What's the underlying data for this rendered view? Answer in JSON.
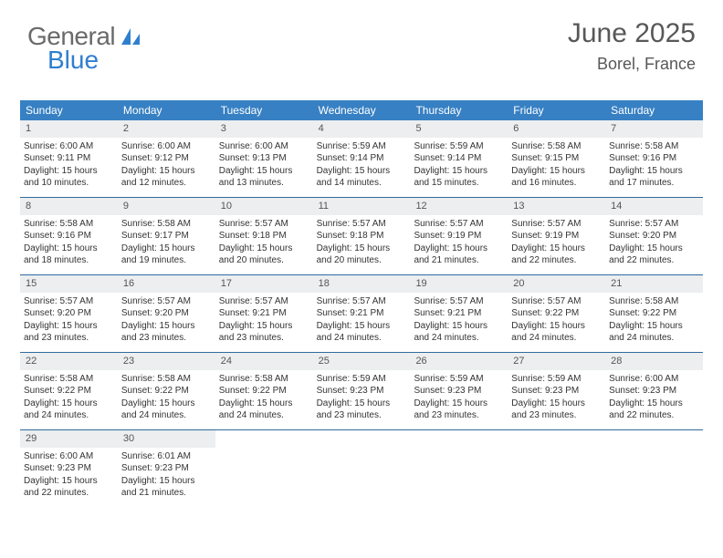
{
  "logo": {
    "part1": "General",
    "part2": "Blue"
  },
  "title": "June 2025",
  "location": "Borel, France",
  "day_header_bg": "#3780c3",
  "day_header_fg": "#ffffff",
  "daynum_bg": "#eceeef",
  "week_border": "#2f6aa0",
  "weekdays": [
    "Sunday",
    "Monday",
    "Tuesday",
    "Wednesday",
    "Thursday",
    "Friday",
    "Saturday"
  ],
  "days": [
    {
      "n": "1",
      "sr": "6:00 AM",
      "ss": "9:11 PM",
      "dl": "15 hours and 10 minutes."
    },
    {
      "n": "2",
      "sr": "6:00 AM",
      "ss": "9:12 PM",
      "dl": "15 hours and 12 minutes."
    },
    {
      "n": "3",
      "sr": "6:00 AM",
      "ss": "9:13 PM",
      "dl": "15 hours and 13 minutes."
    },
    {
      "n": "4",
      "sr": "5:59 AM",
      "ss": "9:14 PM",
      "dl": "15 hours and 14 minutes."
    },
    {
      "n": "5",
      "sr": "5:59 AM",
      "ss": "9:14 PM",
      "dl": "15 hours and 15 minutes."
    },
    {
      "n": "6",
      "sr": "5:58 AM",
      "ss": "9:15 PM",
      "dl": "15 hours and 16 minutes."
    },
    {
      "n": "7",
      "sr": "5:58 AM",
      "ss": "9:16 PM",
      "dl": "15 hours and 17 minutes."
    },
    {
      "n": "8",
      "sr": "5:58 AM",
      "ss": "9:16 PM",
      "dl": "15 hours and 18 minutes."
    },
    {
      "n": "9",
      "sr": "5:58 AM",
      "ss": "9:17 PM",
      "dl": "15 hours and 19 minutes."
    },
    {
      "n": "10",
      "sr": "5:57 AM",
      "ss": "9:18 PM",
      "dl": "15 hours and 20 minutes."
    },
    {
      "n": "11",
      "sr": "5:57 AM",
      "ss": "9:18 PM",
      "dl": "15 hours and 20 minutes."
    },
    {
      "n": "12",
      "sr": "5:57 AM",
      "ss": "9:19 PM",
      "dl": "15 hours and 21 minutes."
    },
    {
      "n": "13",
      "sr": "5:57 AM",
      "ss": "9:19 PM",
      "dl": "15 hours and 22 minutes."
    },
    {
      "n": "14",
      "sr": "5:57 AM",
      "ss": "9:20 PM",
      "dl": "15 hours and 22 minutes."
    },
    {
      "n": "15",
      "sr": "5:57 AM",
      "ss": "9:20 PM",
      "dl": "15 hours and 23 minutes."
    },
    {
      "n": "16",
      "sr": "5:57 AM",
      "ss": "9:20 PM",
      "dl": "15 hours and 23 minutes."
    },
    {
      "n": "17",
      "sr": "5:57 AM",
      "ss": "9:21 PM",
      "dl": "15 hours and 23 minutes."
    },
    {
      "n": "18",
      "sr": "5:57 AM",
      "ss": "9:21 PM",
      "dl": "15 hours and 24 minutes."
    },
    {
      "n": "19",
      "sr": "5:57 AM",
      "ss": "9:21 PM",
      "dl": "15 hours and 24 minutes."
    },
    {
      "n": "20",
      "sr": "5:57 AM",
      "ss": "9:22 PM",
      "dl": "15 hours and 24 minutes."
    },
    {
      "n": "21",
      "sr": "5:58 AM",
      "ss": "9:22 PM",
      "dl": "15 hours and 24 minutes."
    },
    {
      "n": "22",
      "sr": "5:58 AM",
      "ss": "9:22 PM",
      "dl": "15 hours and 24 minutes."
    },
    {
      "n": "23",
      "sr": "5:58 AM",
      "ss": "9:22 PM",
      "dl": "15 hours and 24 minutes."
    },
    {
      "n": "24",
      "sr": "5:58 AM",
      "ss": "9:22 PM",
      "dl": "15 hours and 24 minutes."
    },
    {
      "n": "25",
      "sr": "5:59 AM",
      "ss": "9:23 PM",
      "dl": "15 hours and 23 minutes."
    },
    {
      "n": "26",
      "sr": "5:59 AM",
      "ss": "9:23 PM",
      "dl": "15 hours and 23 minutes."
    },
    {
      "n": "27",
      "sr": "5:59 AM",
      "ss": "9:23 PM",
      "dl": "15 hours and 23 minutes."
    },
    {
      "n": "28",
      "sr": "6:00 AM",
      "ss": "9:23 PM",
      "dl": "15 hours and 22 minutes."
    },
    {
      "n": "29",
      "sr": "6:00 AM",
      "ss": "9:23 PM",
      "dl": "15 hours and 22 minutes."
    },
    {
      "n": "30",
      "sr": "6:01 AM",
      "ss": "9:23 PM",
      "dl": "15 hours and 21 minutes."
    }
  ],
  "labels": {
    "sunrise": "Sunrise:",
    "sunset": "Sunset:",
    "daylight": "Daylight:"
  }
}
